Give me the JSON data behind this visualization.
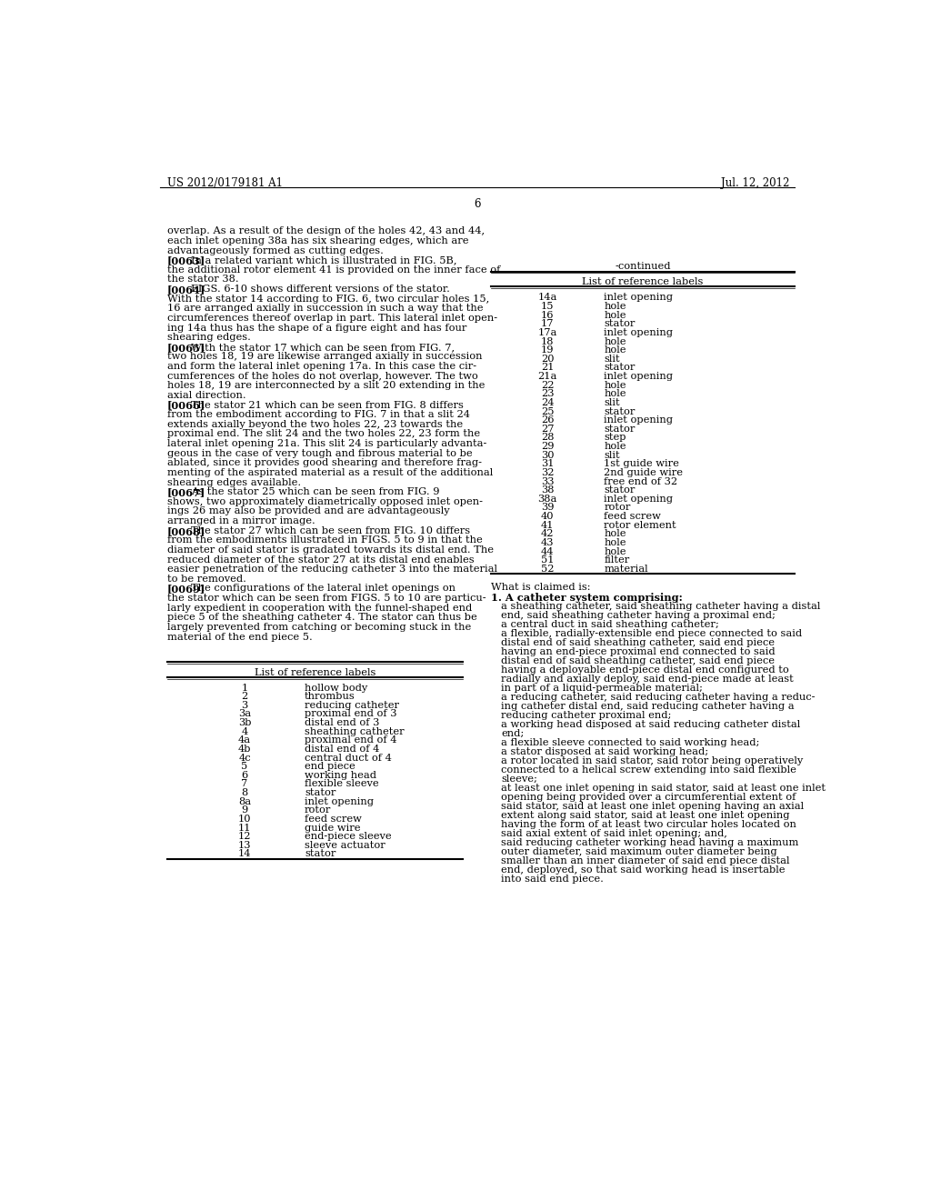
{
  "header_left": "US 2012/0179181 A1",
  "header_right": "Jul. 12, 2012",
  "page_number": "6",
  "background_color": "#ffffff",
  "text_color": "#000000",
  "left_body": [
    {
      "bold_prefix": "",
      "text": "overlap. As a result of the design of the holes 42, 43 and 44,"
    },
    {
      "bold_prefix": "",
      "text": "each inlet opening 38a has six shearing edges, which are"
    },
    {
      "bold_prefix": "",
      "text": "advantageously formed as cutting edges."
    },
    {
      "bold_prefix": "[0063]",
      "indent_text": "In a related variant which is illustrated in FIG. 5B,"
    },
    {
      "bold_prefix": "",
      "text": "the additional rotor element 41 is provided on the inner face of"
    },
    {
      "bold_prefix": "",
      "text": "the stator 38."
    },
    {
      "bold_prefix": "[0064]",
      "indent_text": "FIGS. 6-10 shows different versions of the stator."
    },
    {
      "bold_prefix": "",
      "text": "With the stator 14 according to FIG. 6, two circular holes 15,"
    },
    {
      "bold_prefix": "",
      "text": "16 are arranged axially in succession in such a way that the"
    },
    {
      "bold_prefix": "",
      "text": "circumferences thereof overlap in part. This lateral inlet open-"
    },
    {
      "bold_prefix": "",
      "text": "ing 14a thus has the shape of a figure eight and has four"
    },
    {
      "bold_prefix": "",
      "text": "shearing edges."
    },
    {
      "bold_prefix": "[0065]",
      "indent_text": "With the stator 17 which can be seen from FIG. 7,"
    },
    {
      "bold_prefix": "",
      "text": "two holes 18, 19 are likewise arranged axially in succession"
    },
    {
      "bold_prefix": "",
      "text": "and form the lateral inlet opening 17a. In this case the cir-"
    },
    {
      "bold_prefix": "",
      "text": "cumferences of the holes do not overlap, however. The two"
    },
    {
      "bold_prefix": "",
      "text": "holes 18, 19 are interconnected by a slit 20 extending in the"
    },
    {
      "bold_prefix": "",
      "text": "axial direction."
    },
    {
      "bold_prefix": "[0066]",
      "indent_text": "The stator 21 which can be seen from FIG. 8 differs"
    },
    {
      "bold_prefix": "",
      "text": "from the embodiment according to FIG. 7 in that a slit 24"
    },
    {
      "bold_prefix": "",
      "text": "extends axially beyond the two holes 22, 23 towards the"
    },
    {
      "bold_prefix": "",
      "text": "proximal end. The slit 24 and the two holes 22, 23 form the"
    },
    {
      "bold_prefix": "",
      "text": "lateral inlet opening 21a. This slit 24 is particularly advanta-"
    },
    {
      "bold_prefix": "",
      "text": "geous in the case of very tough and fibrous material to be"
    },
    {
      "bold_prefix": "",
      "text": "ablated, since it provides good shearing and therefore frag-"
    },
    {
      "bold_prefix": "",
      "text": "menting of the aspirated material as a result of the additional"
    },
    {
      "bold_prefix": "",
      "text": "shearing edges available."
    },
    {
      "bold_prefix": "[0067]",
      "indent_text": "As the stator 25 which can be seen from FIG. 9"
    },
    {
      "bold_prefix": "",
      "text": "shows, two approximately diametrically opposed inlet open-"
    },
    {
      "bold_prefix": "",
      "text": "ings 26 may also be provided and are advantageously"
    },
    {
      "bold_prefix": "",
      "text": "arranged in a mirror image."
    },
    {
      "bold_prefix": "[0068]",
      "indent_text": "The stator 27 which can be seen from FIG. 10 differs"
    },
    {
      "bold_prefix": "",
      "text": "from the embodiments illustrated in FIGS. 5 to 9 in that the"
    },
    {
      "bold_prefix": "",
      "text": "diameter of said stator is gradated towards its distal end. The"
    },
    {
      "bold_prefix": "",
      "text": "reduced diameter of the stator 27 at its distal end enables"
    },
    {
      "bold_prefix": "",
      "text": "easier penetration of the reducing catheter 3 into the material"
    },
    {
      "bold_prefix": "",
      "text": "to be removed."
    },
    {
      "bold_prefix": "[0069]",
      "indent_text": "The configurations of the lateral inlet openings on"
    },
    {
      "bold_prefix": "",
      "text": "the stator which can be seen from FIGS. 5 to 10 are particu-"
    },
    {
      "bold_prefix": "",
      "text": "larly expedient in cooperation with the funnel-shaped end"
    },
    {
      "bold_prefix": "",
      "text": "piece 5 of the sheathing catheter 4. The stator can thus be"
    },
    {
      "bold_prefix": "",
      "text": "largely prevented from catching or becoming stuck in the"
    },
    {
      "bold_prefix": "",
      "text": "material of the end piece 5."
    }
  ],
  "ref_table_title": "List of reference labels",
  "ref_table_data": [
    [
      "1",
      "hollow body"
    ],
    [
      "2",
      "thrombus"
    ],
    [
      "3",
      "reducing catheter"
    ],
    [
      "3a",
      "proximal end of 3"
    ],
    [
      "3b",
      "distal end of 3"
    ],
    [
      "4",
      "sheathing catheter"
    ],
    [
      "4a",
      "proximal end of 4"
    ],
    [
      "4b",
      "distal end of 4"
    ],
    [
      "4c",
      "central duct of 4"
    ],
    [
      "5",
      "end piece"
    ],
    [
      "6",
      "working head"
    ],
    [
      "7",
      "flexible sleeve"
    ],
    [
      "8",
      "stator"
    ],
    [
      "8a",
      "inlet opening"
    ],
    [
      "9",
      "rotor"
    ],
    [
      "10",
      "feed screw"
    ],
    [
      "11",
      "guide wire"
    ],
    [
      "12",
      "end-piece sleeve"
    ],
    [
      "13",
      "sleeve actuator"
    ],
    [
      "14",
      "stator"
    ]
  ],
  "continued_table_title": "-continued",
  "continued_ref_table_title": "List of reference labels",
  "continued_table_data": [
    [
      "14a",
      "inlet opening"
    ],
    [
      "15",
      "hole"
    ],
    [
      "16",
      "hole"
    ],
    [
      "17",
      "stator"
    ],
    [
      "17a",
      "inlet opening"
    ],
    [
      "18",
      "hole"
    ],
    [
      "19",
      "hole"
    ],
    [
      "20",
      "slit"
    ],
    [
      "21",
      "stator"
    ],
    [
      "21a",
      "inlet opening"
    ],
    [
      "22",
      "hole"
    ],
    [
      "23",
      "hole"
    ],
    [
      "24",
      "slit"
    ],
    [
      "25",
      "stator"
    ],
    [
      "26",
      "inlet opening"
    ],
    [
      "27",
      "stator"
    ],
    [
      "28",
      "step"
    ],
    [
      "29",
      "hole"
    ],
    [
      "30",
      "slit"
    ],
    [
      "31",
      "1st guide wire"
    ],
    [
      "32",
      "2nd guide wire"
    ],
    [
      "33",
      "free end of 32"
    ],
    [
      "38",
      "stator"
    ],
    [
      "38a",
      "inlet opening"
    ],
    [
      "39",
      "rotor"
    ],
    [
      "40",
      "feed screw"
    ],
    [
      "41",
      "rotor element"
    ],
    [
      "42",
      "hole"
    ],
    [
      "43",
      "hole"
    ],
    [
      "44",
      "hole"
    ],
    [
      "51",
      "filter"
    ],
    [
      "52",
      "material"
    ]
  ],
  "claims_title": "What is claimed is:",
  "claims_lines": [
    {
      "indent": 0,
      "bold": true,
      "text": "1. A catheter system comprising:"
    },
    {
      "indent": 1,
      "bold": false,
      "text": "a sheathing catheter, said sheathing catheter having a distal"
    },
    {
      "indent": 1,
      "bold": false,
      "text": "end, said sheathing catheter having a proximal end;"
    },
    {
      "indent": 1,
      "bold": false,
      "text": "a central duct in said sheathing catheter;"
    },
    {
      "indent": 1,
      "bold": false,
      "text": "a flexible, radially-extensible end piece connected to said"
    },
    {
      "indent": 1,
      "bold": false,
      "text": "distal end of said sheathing catheter, said end piece"
    },
    {
      "indent": 1,
      "bold": false,
      "text": "having an end-piece proximal end connected to said"
    },
    {
      "indent": 1,
      "bold": false,
      "text": "distal end of said sheathing catheter, said end piece"
    },
    {
      "indent": 1,
      "bold": false,
      "text": "having a deployable end-piece distal end configured to"
    },
    {
      "indent": 1,
      "bold": false,
      "text": "radially and axially deploy, said end-piece made at least"
    },
    {
      "indent": 1,
      "bold": false,
      "text": "in part of a liquid-permeable material;"
    },
    {
      "indent": 1,
      "bold": false,
      "text": "a reducing catheter, said reducing catheter having a reduc-"
    },
    {
      "indent": 1,
      "bold": false,
      "text": "ing catheter distal end, said reducing catheter having a"
    },
    {
      "indent": 1,
      "bold": false,
      "text": "reducing catheter proximal end;"
    },
    {
      "indent": 1,
      "bold": false,
      "text": "a working head disposed at said reducing catheter distal"
    },
    {
      "indent": 1,
      "bold": false,
      "text": "end;"
    },
    {
      "indent": 1,
      "bold": false,
      "text": "a flexible sleeve connected to said working head;"
    },
    {
      "indent": 1,
      "bold": false,
      "text": "a stator disposed at said working head;"
    },
    {
      "indent": 1,
      "bold": false,
      "text": "a rotor located in said stator, said rotor being operatively"
    },
    {
      "indent": 1,
      "bold": false,
      "text": "connected to a helical screw extending into said flexible"
    },
    {
      "indent": 1,
      "bold": false,
      "text": "sleeve;"
    },
    {
      "indent": 1,
      "bold": false,
      "text": "at least one inlet opening in said stator, said at least one inlet"
    },
    {
      "indent": 1,
      "bold": false,
      "text": "opening being provided over a circumferential extent of"
    },
    {
      "indent": 1,
      "bold": false,
      "text": "said stator, said at least one inlet opening having an axial"
    },
    {
      "indent": 1,
      "bold": false,
      "text": "extent along said stator, said at least one inlet opening"
    },
    {
      "indent": 1,
      "bold": false,
      "text": "having the form of at least two circular holes located on"
    },
    {
      "indent": 1,
      "bold": false,
      "text": "said axial extent of said inlet opening; and,"
    },
    {
      "indent": 1,
      "bold": false,
      "text": "said reducing catheter working head having a maximum"
    },
    {
      "indent": 1,
      "bold": false,
      "text": "outer diameter, said maximum outer diameter being"
    },
    {
      "indent": 1,
      "bold": false,
      "text": "smaller than an inner diameter of said end piece distal"
    },
    {
      "indent": 1,
      "bold": false,
      "text": "end, deployed, so that said working head is insertable"
    },
    {
      "indent": 1,
      "bold": false,
      "text": "into said end piece."
    }
  ]
}
